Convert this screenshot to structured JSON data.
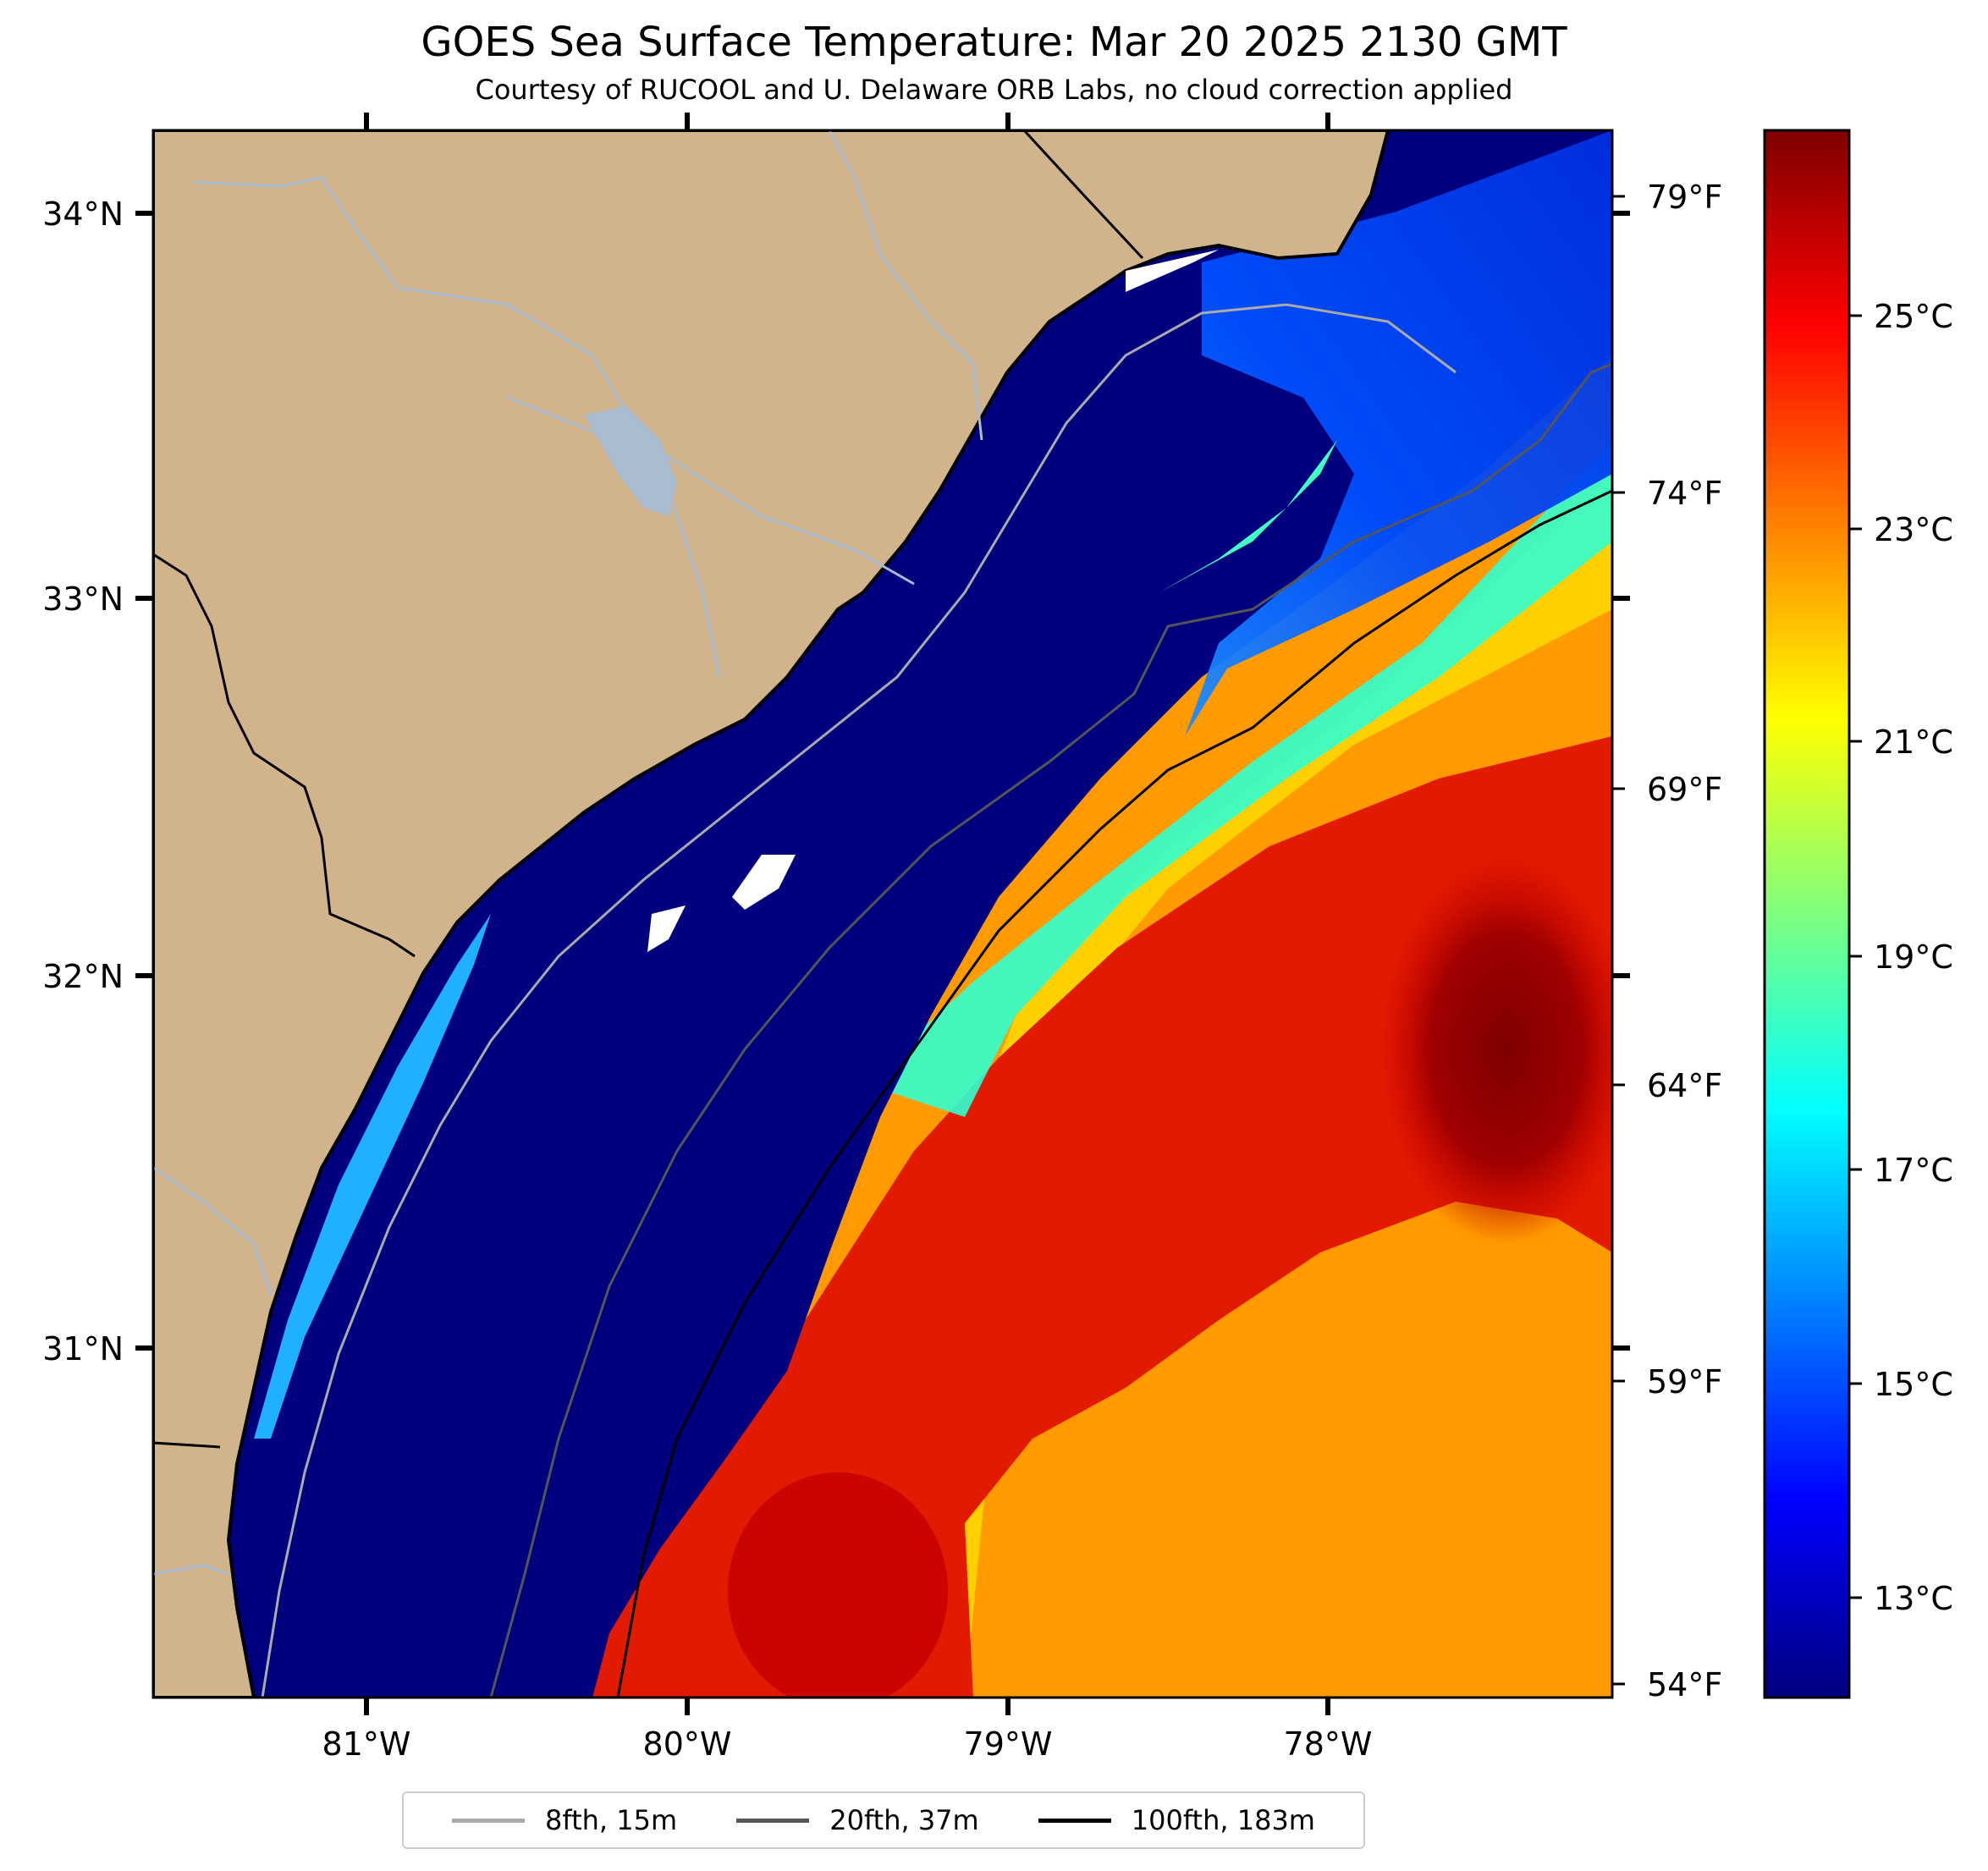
{
  "title": "GOES Sea Surface Temperature: Mar 20 2025 2130 GMT",
  "subtitle": "Courtesy of RUCOOL and U. Delaware ORB Labs, no cloud correction applied",
  "map": {
    "lon_range": [
      -81.67,
      -77.1
    ],
    "lat_range": [
      30.1,
      34.22
    ],
    "lat_ticks": [
      "34°N",
      "33°N",
      "32°N",
      "31°N"
    ],
    "lon_ticks": [
      "81°W",
      "80°W",
      "79°W",
      "78°W"
    ],
    "temp_f_ticks": [
      "79°F",
      "74°F",
      "69°F",
      "64°F",
      "59°F",
      "54°F"
    ],
    "colors": {
      "land": "#d2b48c",
      "cold_water": "#00007f",
      "warm_water": "#d40000",
      "rivers": "#a9bcd0"
    }
  },
  "colorbar": {
    "colormap": "jet",
    "range_c": [
      12,
      26.5
    ],
    "tick_labels": [
      "25°C",
      "23°C",
      "21°C",
      "19°C",
      "17°C",
      "15°C",
      "13°C"
    ]
  },
  "legend": {
    "items": [
      {
        "label": "8fth, 15m",
        "color": "#aaaaaa"
      },
      {
        "label": "20fth, 37m",
        "color": "#555555"
      },
      {
        "label": "100fth, 183m",
        "color": "#000000"
      }
    ]
  }
}
